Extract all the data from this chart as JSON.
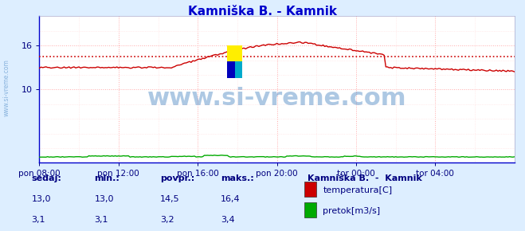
{
  "title": "Kamniška B. - Kamnik",
  "title_color": "#0000cc",
  "fig_bg_color": "#ddeeff",
  "plot_bg_color": "#ffffff",
  "grid_color": "#ffaaaa",
  "grid_minor_color": "#ffdddd",
  "x_labels": [
    "pon 08:00",
    "pon 12:00",
    "pon 16:00",
    "pon 20:00",
    "tor 00:00",
    "tor 04:00"
  ],
  "x_ticks_major": [
    0,
    48,
    96,
    144,
    192,
    240
  ],
  "x_ticks_minor": [
    24,
    72,
    120,
    168,
    216,
    264
  ],
  "x_max": 288,
  "ylim": [
    0,
    20
  ],
  "yticks": [
    10,
    16
  ],
  "temp_avg": 14.5,
  "temp_color": "#cc0000",
  "flow_color": "#00aa00",
  "avg_color": "#cc0000",
  "axis_color": "#0000cc",
  "tick_color": "#000080",
  "watermark": "www.si-vreme.com",
  "watermark_color": "#3377bb",
  "watermark_alpha": 0.4,
  "watermark_fontsize": 22,
  "logo_colors": [
    "#ffee00",
    "#00aacc",
    "#0000bb"
  ],
  "left_text": "www.si-vreme.com",
  "left_text_color": "#3377bb",
  "legend_title": "Kamniška B.  -  Kamnik",
  "legend_title_color": "#000080",
  "legend_items": [
    "temperatura[C]",
    "pretok[m3/s]"
  ],
  "legend_colors": [
    "#cc0000",
    "#00aa00"
  ],
  "table_headers": [
    "sedaj:",
    "min.:",
    "povpr.:",
    "maks.:"
  ],
  "table_temp": [
    "13,0",
    "13,0",
    "14,5",
    "16,4"
  ],
  "table_flow": [
    "3,1",
    "3,1",
    "3,2",
    "3,4"
  ],
  "arrow_color": "#aa0000",
  "border_color": "#0000cc"
}
